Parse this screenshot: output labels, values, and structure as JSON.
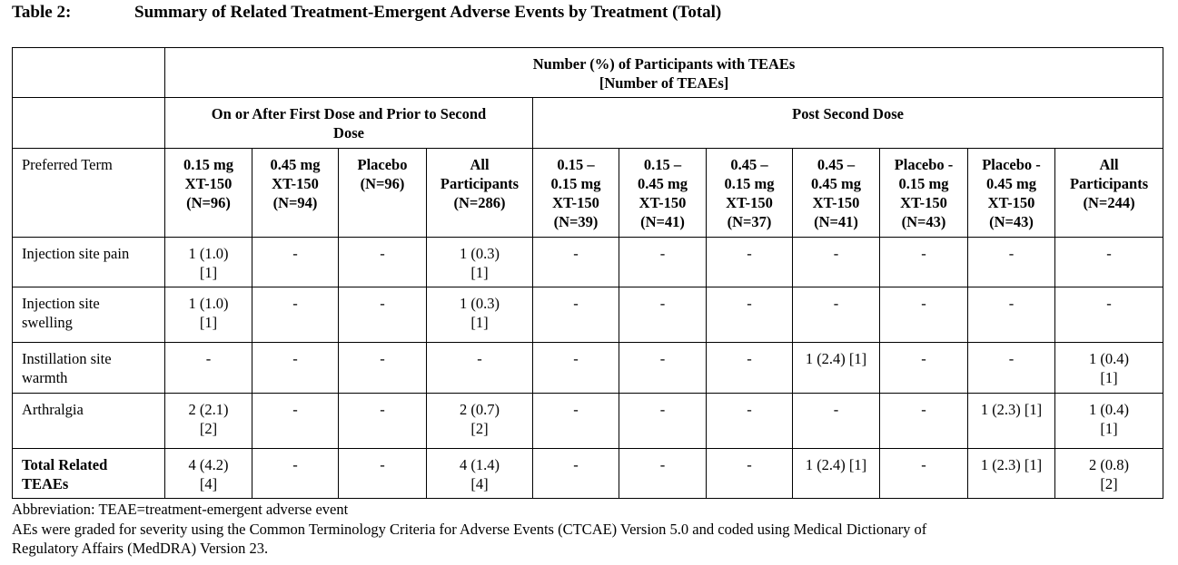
{
  "header": {
    "label": "Table 2:",
    "title": "Summary of Related Treatment-Emergent Adverse Events by Treatment (Total)"
  },
  "table": {
    "group_header": "Number (%) of Participants with TEAEs\n[Number of TEAEs]",
    "periods": [
      "On or After First Dose and Prior to Second\nDose",
      "Post Second Dose"
    ],
    "columns": [
      "Preferred Term",
      "0.15 mg\nXT-150\n(N=96)",
      "0.45 mg\nXT-150\n(N=94)",
      "Placebo\n(N=96)",
      "All\nParticipants\n(N=286)",
      "0.15 –\n0.15 mg\nXT-150\n(N=39)",
      "0.15 –\n0.45 mg\nXT-150\n(N=41)",
      "0.45 –\n0.15 mg\nXT-150\n(N=37)",
      "0.45 –\n0.45 mg\nXT-150\n(N=41)",
      "Placebo -\n0.15 mg\nXT-150\n(N=43)",
      "Placebo -\n0.45 mg\nXT-150\n(N=43)",
      "All\nParticipants\n(N=244)"
    ],
    "rows": [
      [
        "Injection site pain",
        "1 (1.0)\n[1]",
        "-",
        "-",
        "1 (0.3)\n[1]",
        "-",
        "-",
        "-",
        "-",
        "-",
        "-",
        "-"
      ],
      [
        "Injection site\nswelling",
        "1 (1.0)\n[1]",
        "-",
        "-",
        "1 (0.3)\n[1]",
        "-",
        "-",
        "-",
        "-",
        "-",
        "-",
        "-"
      ],
      [
        "Instillation site\nwarmth",
        "-",
        "-",
        "-",
        "-",
        "-",
        "-",
        "-",
        "1 (2.4) [1]",
        "-",
        "-",
        "1 (0.4)\n[1]"
      ],
      [
        "Arthralgia",
        "2 (2.1)\n[2]",
        "-",
        "-",
        "2 (0.7)\n[2]",
        "-",
        "-",
        "-",
        "-",
        "-",
        "1 (2.3) [1]",
        "1 (0.4)\n[1]"
      ],
      [
        "Total Related\nTEAEs",
        "4 (4.2)\n[4]",
        "-",
        "-",
        "4 (1.4)\n[4]",
        "-",
        "-",
        "-",
        "1 (2.4) [1]",
        "-",
        "1 (2.3) [1]",
        "2 (0.8)\n[2]"
      ]
    ]
  },
  "footnotes": [
    "Abbreviation: TEAE=treatment-emergent adverse event",
    "AEs were graded for severity using the Common Terminology Criteria for Adverse Events (CTCAE) Version 5.0 and coded using Medical Dictionary of\nRegulatory Affairs (MedDRA) Version 23."
  ]
}
